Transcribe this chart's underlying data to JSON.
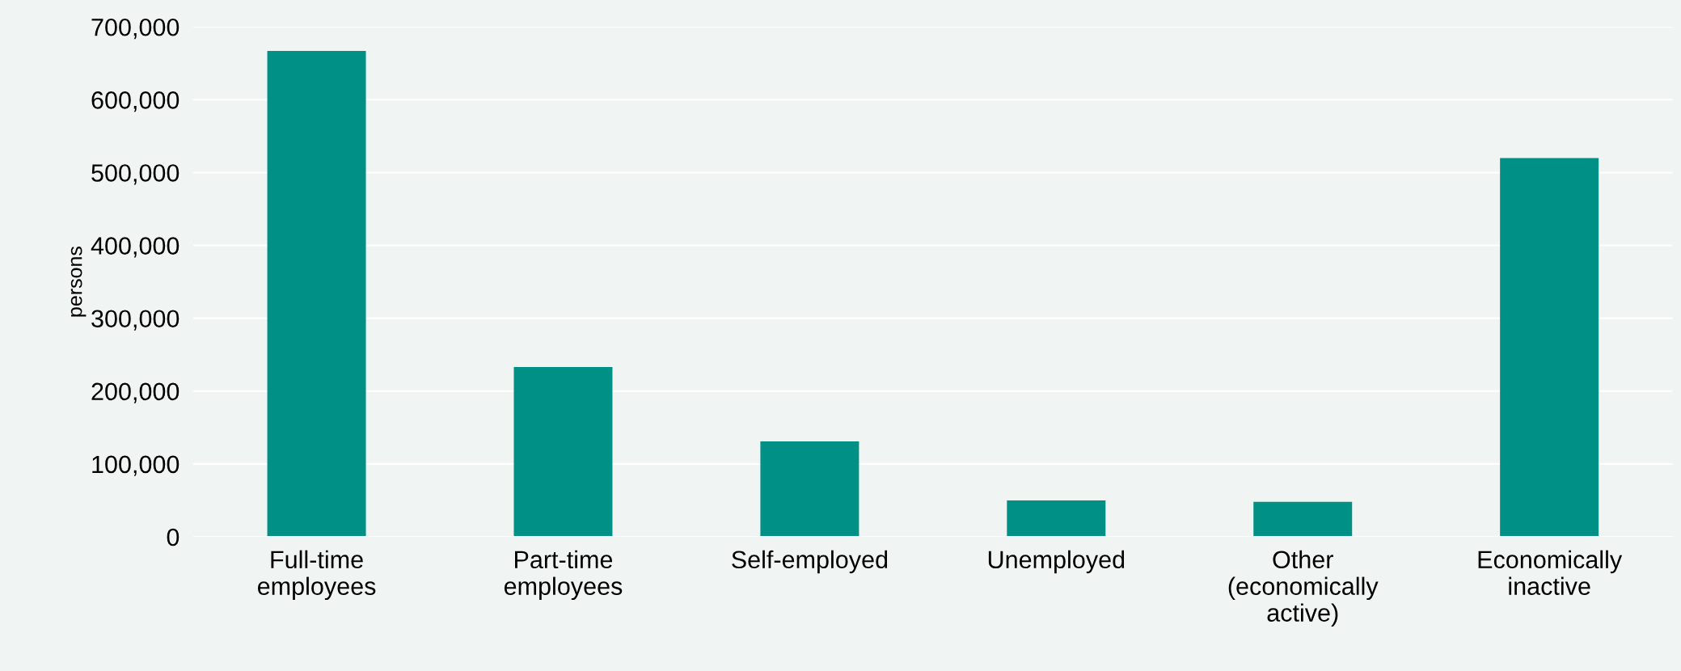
{
  "chart_data": {
    "type": "bar",
    "ylabel": "persons",
    "categories": [
      "Full-time\nemployees",
      "Part-time\nemployees",
      "Self-employed",
      "Unemployed",
      "Other\n(economically\nactive)",
      "Economically\ninactive"
    ],
    "values": [
      667000,
      233000,
      131000,
      50000,
      48000,
      520000
    ],
    "color": "#009085",
    "ylim": [
      0,
      700000
    ],
    "yticks": [
      {
        "value": 0,
        "label": "0"
      },
      {
        "value": 100000,
        "label": "100,000"
      },
      {
        "value": 200000,
        "label": "200,000"
      },
      {
        "value": 300000,
        "label": "300,000"
      },
      {
        "value": 400000,
        "label": "400,000"
      },
      {
        "value": 500000,
        "label": "500,000"
      },
      {
        "value": 600000,
        "label": "600,000"
      },
      {
        "value": 700000,
        "label": "700,000"
      }
    ],
    "grid": "y",
    "legend": false
  }
}
